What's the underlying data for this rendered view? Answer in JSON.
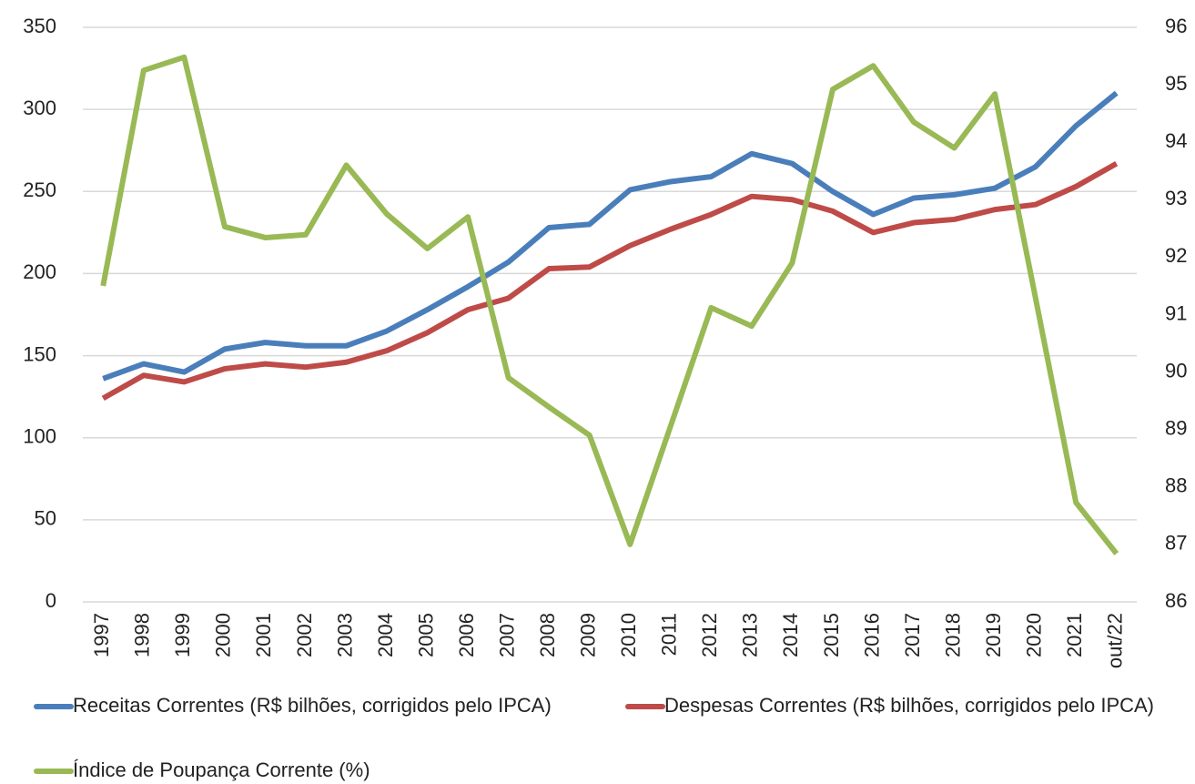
{
  "chart_data": {
    "type": "line",
    "categories": [
      "1997",
      "1998",
      "1999",
      "2000",
      "2001",
      "2002",
      "2003",
      "2004",
      "2005",
      "2006",
      "2007",
      "2008",
      "2009",
      "2010",
      "2011",
      "2012",
      "2013",
      "2014",
      "2015",
      "2016",
      "2017",
      "2018",
      "2019",
      "2020",
      "2021",
      "out/22"
    ],
    "series": [
      {
        "name": "Receitas Correntes (R$ bilhões, corrigidos pelo IPCA)",
        "color": "#4a7ebb",
        "values": [
          136,
          145,
          140,
          154,
          158,
          156,
          156,
          165,
          178,
          192,
          207,
          228,
          230,
          251,
          256,
          259,
          273,
          267,
          250,
          236,
          246,
          248,
          252,
          265,
          290,
          310
        ]
      },
      {
        "name": "Despesas Correntes (R$ bilhões, corrigidos pelo IPCA)",
        "color": "#be4b48",
        "values": [
          124,
          138,
          134,
          142,
          145,
          143,
          146,
          153,
          164,
          178,
          185,
          203,
          204,
          217,
          227,
          236,
          247,
          245,
          238,
          225,
          231,
          233,
          239,
          242,
          253,
          267
        ]
      },
      {
        "name": "Índice de Poupança Corrente (%)",
        "color": "#98b954",
        "axis": "y2",
        "values": [
          91.5,
          95.25,
          95.48,
          92.53,
          92.34,
          92.39,
          93.6,
          92.75,
          92.15,
          92.7,
          89.9,
          89.39,
          88.9,
          87.0,
          89.06,
          91.12,
          90.8,
          91.9,
          94.92,
          95.33,
          94.35,
          93.9,
          94.84,
          91.3,
          87.73,
          86.84
        ]
      }
    ],
    "ylim": [
      0,
      350
    ],
    "yticks": [
      0,
      50,
      100,
      150,
      200,
      250,
      300,
      350
    ],
    "y2lim": [
      86,
      96
    ],
    "y2ticks": [
      86,
      87,
      88,
      89,
      90,
      91,
      92,
      93,
      94,
      95,
      96
    ],
    "grid": true
  }
}
